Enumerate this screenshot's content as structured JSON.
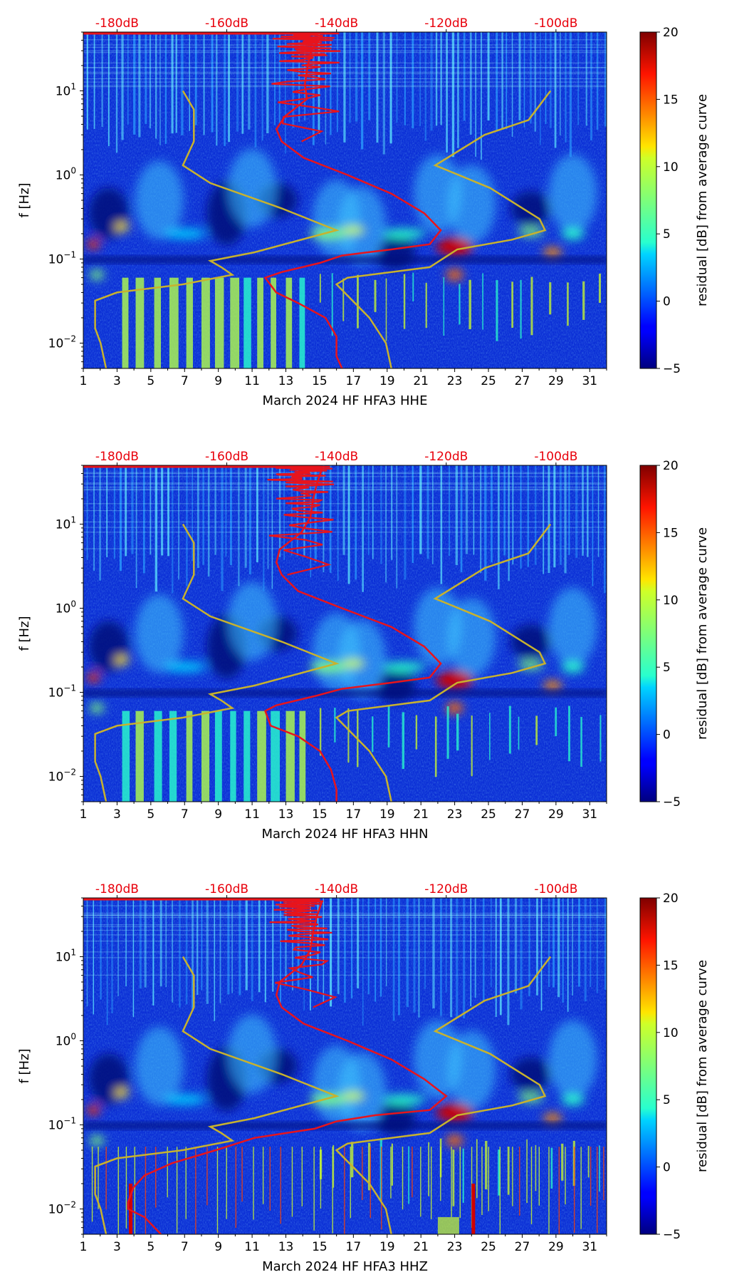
{
  "colorbar": {
    "label": "residual [dB] from average curve",
    "ticks": [
      "20",
      "15",
      "10",
      "5",
      "0",
      "−5"
    ],
    "range": [
      -5,
      20
    ],
    "colormap": "jet"
  },
  "y_axis": {
    "label": "f [Hz]",
    "ticks": [
      {
        "value": 10,
        "base": "10",
        "exp": "1"
      },
      {
        "value": 1,
        "base": "10",
        "exp": "0"
      },
      {
        "value": 0.1,
        "base": "10",
        "exp": "−1"
      },
      {
        "value": 0.01,
        "base": "10",
        "exp": "−2"
      }
    ],
    "ylim": [
      0.005,
      50
    ],
    "scale": "log"
  },
  "x_axis": {
    "ticks": [
      "1",
      "3",
      "5",
      "7",
      "9",
      "11",
      "13",
      "15",
      "17",
      "19",
      "21",
      "23",
      "25",
      "27",
      "29",
      "31"
    ],
    "xlim": [
      1,
      32
    ]
  },
  "top_axis": {
    "ticks": [
      "-180dB",
      "-160dB",
      "-140dB",
      "-120dB",
      "-100dB"
    ],
    "values": [
      -180,
      -160,
      -140,
      -120,
      -100
    ],
    "color": "#e8000b"
  },
  "colors": {
    "red_curve": "#e8141c",
    "yellow_curve": "#c8b22e",
    "top_label": "#e8000b"
  },
  "chart_data": [
    {
      "type": "heatmap",
      "title": "",
      "xlabel": "March 2024 HF HFA3  HHE",
      "ylabel": "f [Hz]",
      "xlim": [
        1,
        32
      ],
      "ylim": [
        0.005,
        50
      ],
      "yscale": "log",
      "series": [
        {
          "values": [
            [
              -150,
              50
            ],
            [
              -143,
              45
            ],
            [
              -144,
              30
            ],
            [
              -146,
              20
            ],
            [
              -145,
              12
            ],
            [
              -146,
              8
            ],
            [
              -149,
              5
            ],
            [
              -151,
              3.5
            ],
            [
              -150,
              2.5
            ],
            [
              -146,
              1.6
            ],
            [
              -138,
              1.0
            ],
            [
              -130,
              0.6
            ],
            [
              -124,
              0.35
            ],
            [
              -121,
              0.22
            ],
            [
              -123,
              0.15
            ],
            [
              -130,
              0.13
            ],
            [
              -139,
              0.11
            ],
            [
              -143,
              0.09
            ],
            [
              -150,
              0.07
            ],
            [
              -153,
              0.06
            ],
            [
              -151,
              0.04
            ],
            [
              -147,
              0.03
            ],
            [
              -142,
              0.02
            ],
            [
              -140,
              0.012
            ],
            [
              -140,
              0.007
            ],
            [
              -139,
              0.005
            ]
          ]
        },
        {
          "values": [
            [
              -168,
              10
            ],
            [
              -166,
              6
            ],
            [
              -166,
              2.5
            ],
            [
              -168,
              1.3
            ],
            [
              -163,
              0.8
            ],
            [
              -150,
              0.4
            ],
            [
              -140,
              0.22
            ],
            [
              -155,
              0.12
            ],
            [
              -163,
              0.095
            ],
            [
              -161,
              0.08
            ],
            [
              -159,
              0.065
            ],
            [
              -168,
              0.05
            ],
            [
              -180,
              0.04
            ],
            [
              -184,
              0.032
            ],
            [
              -184,
              0.025
            ],
            [
              -184,
              0.015
            ],
            [
              -183,
              0.01
            ],
            [
              -182,
              0.005
            ]
          ]
        },
        {
          "values": [
            [
              -101,
              10
            ],
            [
              -105,
              4.5
            ],
            [
              -113,
              3
            ],
            [
              -122,
              1.3
            ],
            [
              -112,
              0.7
            ],
            [
              -103,
              0.3
            ],
            [
              -102,
              0.22
            ],
            [
              -108,
              0.17
            ],
            [
              -118,
              0.13
            ],
            [
              -123,
              0.08
            ],
            [
              -138,
              0.06
            ],
            [
              -140,
              0.05
            ],
            [
              -134,
              0.02
            ],
            [
              -131,
              0.01
            ],
            [
              -130,
              0.005
            ]
          ]
        }
      ]
    },
    {
      "type": "heatmap",
      "title": "",
      "xlabel": "March 2024 HF HFA3  HHN",
      "ylabel": "f [Hz]",
      "xlim": [
        1,
        32
      ],
      "ylim": [
        0.005,
        50
      ],
      "yscale": "log",
      "series": [
        {
          "values": [
            [
              -150,
              50
            ],
            [
              -143,
              45
            ],
            [
              -143,
              30
            ],
            [
              -145,
              20
            ],
            [
              -144,
              12
            ],
            [
              -147,
              8
            ],
            [
              -150,
              5
            ],
            [
              -151,
              3.5
            ],
            [
              -150,
              2.5
            ],
            [
              -147,
              1.6
            ],
            [
              -139,
              1.0
            ],
            [
              -130,
              0.6
            ],
            [
              -124,
              0.35
            ],
            [
              -121,
              0.22
            ],
            [
              -123,
              0.15
            ],
            [
              -130,
              0.13
            ],
            [
              -139,
              0.11
            ],
            [
              -144,
              0.09
            ],
            [
              -151,
              0.07
            ],
            [
              -153,
              0.06
            ],
            [
              -152,
              0.04
            ],
            [
              -147,
              0.03
            ],
            [
              -143,
              0.02
            ],
            [
              -141,
              0.012
            ],
            [
              -140,
              0.007
            ],
            [
              -140,
              0.005
            ]
          ]
        },
        {
          "values": [
            [
              -168,
              10
            ],
            [
              -166,
              6
            ],
            [
              -166,
              2.5
            ],
            [
              -168,
              1.3
            ],
            [
              -163,
              0.8
            ],
            [
              -150,
              0.4
            ],
            [
              -140,
              0.22
            ],
            [
              -155,
              0.12
            ],
            [
              -163,
              0.095
            ],
            [
              -161,
              0.08
            ],
            [
              -159,
              0.065
            ],
            [
              -168,
              0.05
            ],
            [
              -180,
              0.04
            ],
            [
              -184,
              0.032
            ],
            [
              -184,
              0.025
            ],
            [
              -184,
              0.015
            ],
            [
              -183,
              0.01
            ],
            [
              -182,
              0.005
            ]
          ]
        },
        {
          "values": [
            [
              -101,
              10
            ],
            [
              -105,
              4.5
            ],
            [
              -113,
              3
            ],
            [
              -122,
              1.3
            ],
            [
              -112,
              0.7
            ],
            [
              -103,
              0.3
            ],
            [
              -102,
              0.22
            ],
            [
              -108,
              0.17
            ],
            [
              -118,
              0.13
            ],
            [
              -123,
              0.08
            ],
            [
              -138,
              0.06
            ],
            [
              -140,
              0.05
            ],
            [
              -134,
              0.02
            ],
            [
              -131,
              0.01
            ],
            [
              -130,
              0.005
            ]
          ]
        }
      ]
    },
    {
      "type": "heatmap",
      "title": "",
      "xlabel": "March 2024 HF HFA3  HHZ",
      "ylabel": "f [Hz]",
      "xlim": [
        1,
        32
      ],
      "ylim": [
        0.005,
        50
      ],
      "yscale": "log",
      "series": [
        {
          "values": [
            [
              -150,
              50
            ],
            [
              -143,
              45
            ],
            [
              -143,
              30
            ],
            [
              -145,
              20
            ],
            [
              -144,
              12
            ],
            [
              -147,
              8
            ],
            [
              -150,
              5
            ],
            [
              -151,
              3.5
            ],
            [
              -150,
              2.5
            ],
            [
              -146,
              1.6
            ],
            [
              -138,
              1.0
            ],
            [
              -130,
              0.6
            ],
            [
              -124,
              0.35
            ],
            [
              -120,
              0.22
            ],
            [
              -123,
              0.15
            ],
            [
              -133,
              0.13
            ],
            [
              -140,
              0.11
            ],
            [
              -144,
              0.09
            ],
            [
              -155,
              0.07
            ],
            [
              -162,
              0.05
            ],
            [
              -170,
              0.035
            ],
            [
              -175,
              0.025
            ],
            [
              -177,
              0.018
            ],
            [
              -178,
              0.012
            ],
            [
              -178,
              0.01
            ],
            [
              -175,
              0.008
            ],
            [
              -172,
              0.005
            ]
          ]
        },
        {
          "values": [
            [
              -168,
              10
            ],
            [
              -166,
              6
            ],
            [
              -166,
              2.5
            ],
            [
              -168,
              1.3
            ],
            [
              -163,
              0.8
            ],
            [
              -150,
              0.4
            ],
            [
              -140,
              0.22
            ],
            [
              -155,
              0.12
            ],
            [
              -163,
              0.095
            ],
            [
              -161,
              0.08
            ],
            [
              -159,
              0.065
            ],
            [
              -168,
              0.05
            ],
            [
              -180,
              0.04
            ],
            [
              -184,
              0.032
            ],
            [
              -184,
              0.025
            ],
            [
              -184,
              0.015
            ],
            [
              -183,
              0.01
            ],
            [
              -182,
              0.005
            ]
          ]
        },
        {
          "values": [
            [
              -101,
              10
            ],
            [
              -105,
              4.5
            ],
            [
              -113,
              3
            ],
            [
              -122,
              1.3
            ],
            [
              -112,
              0.7
            ],
            [
              -103,
              0.3
            ],
            [
              -102,
              0.22
            ],
            [
              -108,
              0.17
            ],
            [
              -118,
              0.13
            ],
            [
              -123,
              0.08
            ],
            [
              -138,
              0.06
            ],
            [
              -140,
              0.05
            ],
            [
              -134,
              0.02
            ],
            [
              -131,
              0.01
            ],
            [
              -130,
              0.005
            ]
          ]
        }
      ]
    }
  ]
}
